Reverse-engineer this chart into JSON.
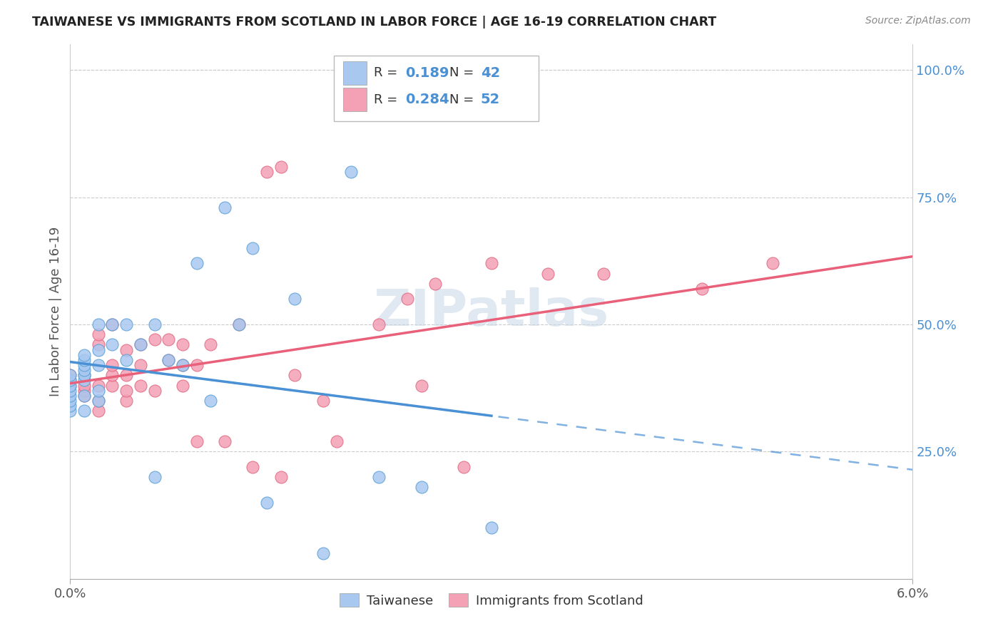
{
  "title": "TAIWANESE VS IMMIGRANTS FROM SCOTLAND IN LABOR FORCE | AGE 16-19 CORRELATION CHART",
  "source": "Source: ZipAtlas.com",
  "ylabel": "In Labor Force | Age 16-19",
  "xmin": 0.0,
  "xmax": 0.06,
  "ymin": 0.0,
  "ymax": 1.05,
  "x_tick_labels": [
    "0.0%",
    "6.0%"
  ],
  "y_tick_values": [
    0.25,
    0.5,
    0.75,
    1.0
  ],
  "y_tick_labels": [
    "25.0%",
    "50.0%",
    "75.0%",
    "100.0%"
  ],
  "taiwanese_R": "0.189",
  "taiwanese_N": "42",
  "scotland_R": "0.284",
  "scotland_N": "52",
  "taiwanese_dot_color": "#a8c8f0",
  "taiwanese_dot_edge": "#5a9fd4",
  "scotland_dot_color": "#f4a0b5",
  "scotland_dot_edge": "#e06880",
  "taiwanese_line_color": "#4a90d4",
  "scotland_line_color": "#e8607a",
  "watermark_text": "ZIPatlas",
  "watermark_color": "#c8d8e8",
  "grid_color": "#cccccc",
  "title_color": "#222222",
  "source_color": "#888888",
  "tick_color_x": "#555555",
  "tick_color_y": "#4a90d4",
  "ylabel_color": "#555555",
  "legend_R_N_color": "#4a90d4",
  "legend_text_color": "#333333",
  "legend_taiwanese_patch": "#a8c8f0",
  "legend_scotland_patch": "#f4a0b5",
  "taiwanese_x": [
    0.0,
    0.0,
    0.0,
    0.0,
    0.0,
    0.0,
    0.0,
    0.0,
    0.001,
    0.001,
    0.001,
    0.001,
    0.001,
    0.001,
    0.001,
    0.001,
    0.002,
    0.002,
    0.002,
    0.002,
    0.002,
    0.003,
    0.003,
    0.004,
    0.004,
    0.005,
    0.006,
    0.006,
    0.007,
    0.008,
    0.009,
    0.01,
    0.011,
    0.012,
    0.013,
    0.014,
    0.016,
    0.018,
    0.02,
    0.022,
    0.025,
    0.03
  ],
  "taiwanese_y": [
    0.33,
    0.34,
    0.35,
    0.36,
    0.37,
    0.38,
    0.39,
    0.4,
    0.33,
    0.36,
    0.39,
    0.4,
    0.41,
    0.42,
    0.43,
    0.44,
    0.35,
    0.37,
    0.42,
    0.45,
    0.5,
    0.46,
    0.5,
    0.43,
    0.5,
    0.46,
    0.2,
    0.5,
    0.43,
    0.42,
    0.62,
    0.35,
    0.73,
    0.5,
    0.65,
    0.15,
    0.55,
    0.05,
    0.8,
    0.2,
    0.18,
    0.1
  ],
  "scotland_x": [
    0.0,
    0.0,
    0.0,
    0.001,
    0.001,
    0.001,
    0.001,
    0.002,
    0.002,
    0.002,
    0.002,
    0.002,
    0.003,
    0.003,
    0.003,
    0.003,
    0.004,
    0.004,
    0.004,
    0.004,
    0.005,
    0.005,
    0.005,
    0.006,
    0.006,
    0.007,
    0.007,
    0.008,
    0.008,
    0.008,
    0.009,
    0.009,
    0.01,
    0.011,
    0.012,
    0.013,
    0.014,
    0.015,
    0.015,
    0.016,
    0.018,
    0.019,
    0.022,
    0.024,
    0.025,
    0.026,
    0.028,
    0.03,
    0.034,
    0.038,
    0.045,
    0.05
  ],
  "scotland_y": [
    0.38,
    0.39,
    0.4,
    0.36,
    0.37,
    0.38,
    0.4,
    0.33,
    0.35,
    0.38,
    0.46,
    0.48,
    0.38,
    0.4,
    0.42,
    0.5,
    0.35,
    0.37,
    0.4,
    0.45,
    0.38,
    0.42,
    0.46,
    0.37,
    0.47,
    0.43,
    0.47,
    0.38,
    0.42,
    0.46,
    0.27,
    0.42,
    0.46,
    0.27,
    0.5,
    0.22,
    0.8,
    0.81,
    0.2,
    0.4,
    0.35,
    0.27,
    0.5,
    0.55,
    0.38,
    0.58,
    0.22,
    0.62,
    0.6,
    0.6,
    0.57,
    0.62
  ]
}
